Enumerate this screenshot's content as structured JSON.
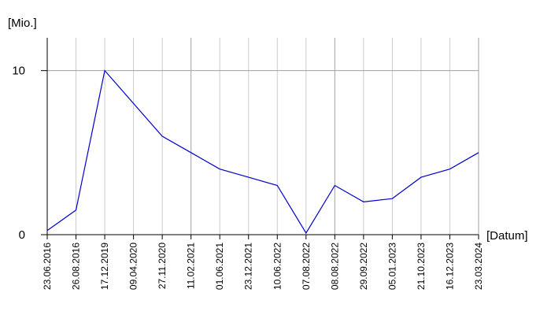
{
  "chart_data": {
    "type": "line",
    "y_label": "[Mio.]",
    "x_label": "[Datum]",
    "categories": [
      "23.06.2016",
      "26.08.2016",
      "17.12.2019",
      "09.04.2020",
      "27.11.2020",
      "11.02.2021",
      "01.06.2021",
      "23.12.2021",
      "10.06.2022",
      "07.08.2022",
      "08.08.2022",
      "29.09.2022",
      "05.01.2023",
      "21.10.2023",
      "16.12.2023",
      "23.03.2024"
    ],
    "values": [
      0.25,
      1.5,
      10,
      8,
      6,
      5,
      4,
      3.5,
      3,
      0.1,
      3,
      2,
      2.2,
      3.5,
      4,
      5
    ],
    "color": "#0000cc",
    "ylim": [
      0,
      12
    ],
    "yticks": [
      0,
      10
    ],
    "grid": true
  }
}
